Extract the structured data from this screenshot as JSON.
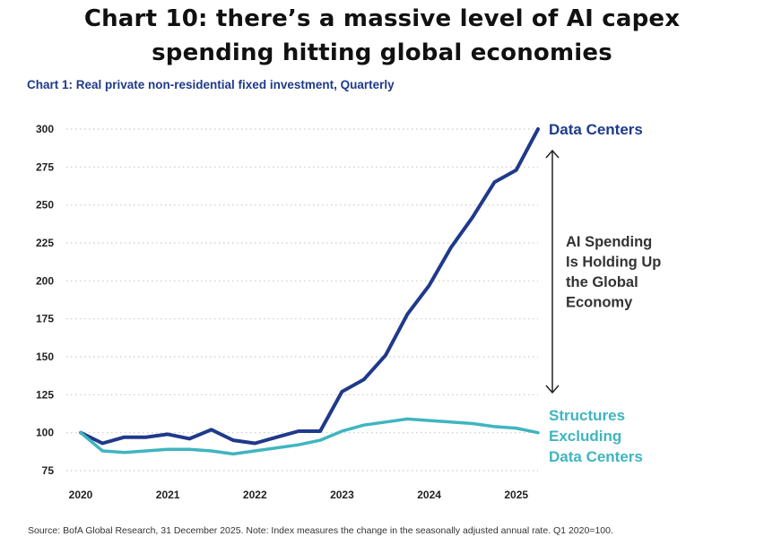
{
  "headline": {
    "line1": "Chart 10: there’s a massive level of AI capex",
    "line2": "spending hitting global economies"
  },
  "subtitle": "Chart 1: Real private non-residential fixed investment, Quarterly",
  "source": "Source: BofA Global Research, 31 December 2025. Note: Index measures the change in the seasonally adjusted annual rate. Q1 2020=100.",
  "annotation": [
    "AI Spending",
    "Is Holding Up",
    "the Global",
    "Economy"
  ],
  "colors": {
    "data_centers": "#1f3a8a",
    "structures": "#3fb5c0",
    "grid": "#c9c9c9",
    "arrow": "#222222"
  },
  "chart_data": {
    "type": "line",
    "x": [
      2020.0,
      2020.25,
      2020.5,
      2020.75,
      2021.0,
      2021.25,
      2021.5,
      2021.75,
      2022.0,
      2022.25,
      2022.5,
      2022.75,
      2023.0,
      2023.25,
      2023.5,
      2023.75,
      2024.0,
      2024.25,
      2024.5,
      2024.75,
      2025.0,
      2025.25
    ],
    "xticks": [
      "2020",
      "2021",
      "2022",
      "2023",
      "2024",
      "2025"
    ],
    "xtick_values": [
      2020,
      2021,
      2022,
      2023,
      2024,
      2025
    ],
    "ylim": [
      75,
      300
    ],
    "yticks": [
      "75",
      "100",
      "125",
      "150",
      "175",
      "200",
      "225",
      "250",
      "275",
      "300"
    ],
    "ytick_values": [
      75,
      100,
      125,
      150,
      175,
      200,
      225,
      250,
      275,
      300
    ],
    "grid": "horizontal dotted",
    "series": [
      {
        "name": "Data Centers",
        "label_lines": [
          "Data Centers"
        ],
        "color": "#1f3a8a",
        "values": [
          100,
          93,
          97,
          97,
          99,
          96,
          102,
          95,
          93,
          97,
          101,
          101,
          127,
          135,
          151,
          178,
          197,
          222,
          242,
          265,
          273,
          300
        ]
      },
      {
        "name": "Structures Excluding Data Centers",
        "label_lines": [
          "Structures",
          "Excluding",
          "Data Centers"
        ],
        "color": "#3fb5c0",
        "values": [
          100,
          88,
          87,
          88,
          89,
          89,
          88,
          86,
          88,
          90,
          92,
          95,
          101,
          105,
          107,
          109,
          108,
          107,
          106,
          104,
          103,
          100
        ]
      }
    ]
  }
}
